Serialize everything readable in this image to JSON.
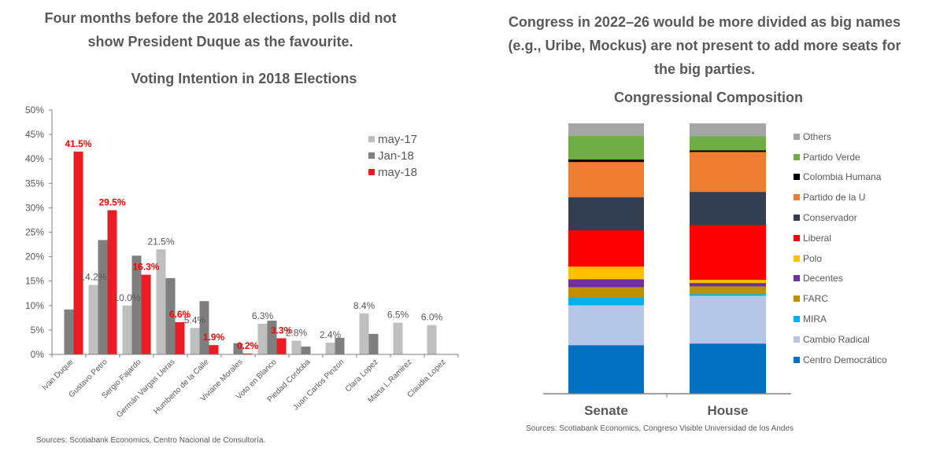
{
  "left_panel": {
    "headline_line1": "Four months before the 2018 elections, polls did not",
    "headline_line2": "show President Duque as the favourite.",
    "source": "Sources: Scotiabank Economics, Centro Nacional de Consultoría."
  },
  "right_panel": {
    "headline_line1": "Congress in 2022–26 would be more divided as big names",
    "headline_line2": "(e.g., Uribe, Mockus) are not present to add more seats for",
    "headline_line3": "the big parties.",
    "source": "Sources: Scotiabank Economics, Congreso Visible Universidad de los Andes"
  },
  "chart_data": [
    {
      "type": "bar",
      "title": "Voting Intention in 2018 Elections",
      "xlabel": "",
      "ylabel": "",
      "ylim": [
        0,
        50
      ],
      "yticks": [
        "0%",
        "5%",
        "10%",
        "15%",
        "20%",
        "25%",
        "30%",
        "35%",
        "40%",
        "45%",
        "50%"
      ],
      "grid": false,
      "legend_position": "top-right",
      "categories": [
        "Ivan Duque",
        "Gustavo Petro",
        "Sergio Fajardo",
        "Germán Vargas Lleras",
        "Humberto de la Calle",
        "Viviane Morales",
        "Voto en Blanco",
        "Piedad Cordoba",
        "Juan Carlos Pinzon",
        "Clara Lopez",
        "Marta L.Ramirez",
        "Claudia Lopez"
      ],
      "series": [
        {
          "name": "may-17",
          "color": "#bfbfbf",
          "label_color": "#595959",
          "label_bold": false,
          "values": [
            null,
            14.2,
            10.0,
            21.5,
            5.4,
            null,
            6.3,
            2.8,
            2.4,
            8.4,
            6.5,
            6.0
          ],
          "labels": [
            null,
            "14.2%",
            "10.0%",
            "21.5%",
            "5.4%",
            null,
            "6.3%",
            "2.8%",
            "2.4%",
            "8.4%",
            "6.5%",
            "6.0%"
          ]
        },
        {
          "name": "Jan-18",
          "color": "#7f7f7f",
          "values": [
            9.2,
            23.4,
            20.2,
            15.6,
            10.9,
            2.3,
            6.9,
            1.6,
            3.4,
            4.2,
            null,
            null
          ],
          "labels": [
            null,
            null,
            null,
            null,
            null,
            null,
            null,
            null,
            null,
            null,
            null,
            null
          ]
        },
        {
          "name": "may-18",
          "color": "#ed1c24",
          "label_color": "#ff0000",
          "label_bold": true,
          "values": [
            41.5,
            29.5,
            16.3,
            6.6,
            1.9,
            0.2,
            3.3,
            null,
            null,
            null,
            null,
            null
          ],
          "labels": [
            "41.5%",
            "29.5%",
            "16.3%",
            "6.6%",
            "1.9%",
            "0.2%",
            "3.3%",
            null,
            null,
            null,
            null,
            null
          ]
        }
      ]
    },
    {
      "type": "bar",
      "stacked": true,
      "normalized": true,
      "title": "Congressional Composition",
      "xlabel": "",
      "ylabel": "",
      "grid": false,
      "legend_position": "right",
      "categories": [
        "Senate",
        "House"
      ],
      "series": [
        {
          "name": "Centro Democrático",
          "color": "#0070c0",
          "values": [
            18.0,
            18.6
          ]
        },
        {
          "name": "Cambio Radical",
          "color": "#b4c7e7",
          "values": [
            14.8,
            17.7
          ]
        },
        {
          "name": "MIRA",
          "color": "#00b0f0",
          "values": [
            2.9,
            0.6
          ]
        },
        {
          "name": "FARC",
          "color": "#bf9000",
          "values": [
            3.8,
            2.9
          ]
        },
        {
          "name": "Decentes",
          "color": "#7030a0",
          "values": [
            2.9,
            1.2
          ]
        },
        {
          "name": "Polo",
          "color": "#ffc000",
          "values": [
            4.7,
            1.2
          ]
        },
        {
          "name": "Liberal",
          "color": "#ff0000",
          "values": [
            13.4,
            20.3
          ]
        },
        {
          "name": "Conservador",
          "color": "#333f50",
          "values": [
            12.2,
            12.2
          ]
        },
        {
          "name": "Partido de la U",
          "color": "#ed7d31",
          "values": [
            13.1,
            14.8
          ]
        },
        {
          "name": "Colombia Humana",
          "color": "#000000",
          "values": [
            0.9,
            0.6
          ]
        },
        {
          "name": "Partido Verde",
          "color": "#70ad47",
          "values": [
            8.7,
            5.2
          ]
        },
        {
          "name": "Others",
          "color": "#a5a5a5",
          "values": [
            4.6,
            4.7
          ]
        }
      ],
      "legend_order": [
        "Others",
        "Partido Verde",
        "Colombia Humana",
        "Partido de la U",
        "Conservador",
        "Liberal",
        "Polo",
        "Decentes",
        "FARC",
        "MIRA",
        "Cambio Radical",
        "Centro Democrático"
      ]
    }
  ]
}
